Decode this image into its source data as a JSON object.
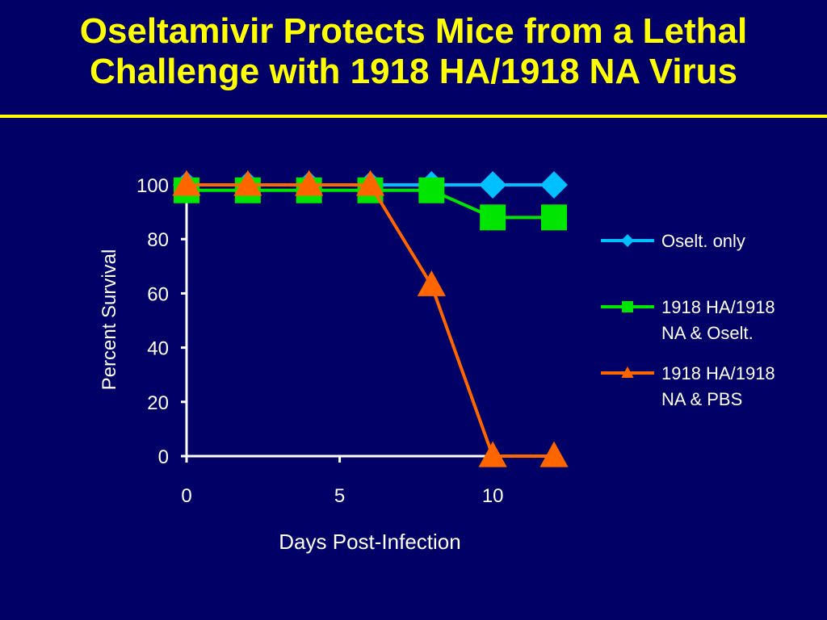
{
  "slide": {
    "title_line1": "Oseltamivir Protects Mice from a Lethal",
    "title_line2": "Challenge with 1918 HA/1918 NA Virus"
  },
  "colors": {
    "background": "#000066",
    "title": "#ffff00",
    "axis": "#ffffff"
  },
  "chart_data": {
    "type": "line",
    "xlabel": "Days Post-Infection",
    "ylabel": "Percent Survival",
    "xlim": [
      0,
      12
    ],
    "ylim": [
      0,
      100
    ],
    "xticks": [
      0,
      5,
      10
    ],
    "yticks": [
      0,
      20,
      40,
      60,
      80,
      100
    ],
    "grid": false,
    "legend_position": "right",
    "series": [
      {
        "name": "Oselt. only",
        "color": "#00bfff",
        "marker": "diamond",
        "x": [
          0,
          2,
          4,
          6,
          8,
          10,
          12
        ],
        "y": [
          100,
          100,
          100,
          100,
          100,
          100,
          100
        ]
      },
      {
        "name": "1918 HA/1918 NA & Oselt.",
        "legend_lines": [
          "1918 HA/1918",
          "NA & Oselt."
        ],
        "color": "#00e600",
        "marker": "square",
        "x": [
          0,
          2,
          4,
          6,
          8,
          10,
          12
        ],
        "y": [
          98,
          98,
          98,
          98,
          98,
          88,
          88
        ]
      },
      {
        "name": "1918 HA/1918 NA & PBS",
        "legend_lines": [
          "1918 HA/1918",
          "NA & PBS"
        ],
        "color": "#ff6600",
        "marker": "triangle",
        "x": [
          0,
          2,
          4,
          6,
          8,
          10,
          12
        ],
        "y": [
          100,
          100,
          100,
          100,
          63,
          0,
          0
        ]
      }
    ]
  }
}
